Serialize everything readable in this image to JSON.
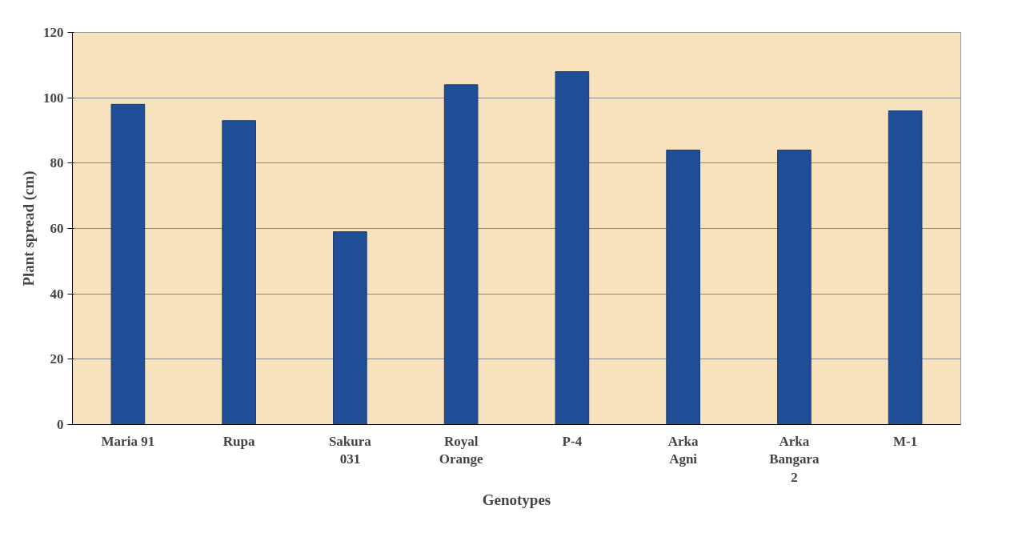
{
  "chart_data": {
    "type": "bar",
    "xlabel": "Genotypes",
    "ylabel": "Plant spread (cm)",
    "categories": [
      "Maria 91",
      "Rupa",
      "Sakura 031",
      "Royal Orange",
      "P-4",
      "Arka Agni",
      "Arka Bangara 2",
      "M-1"
    ],
    "values": [
      98,
      93,
      59,
      104,
      108,
      84,
      84,
      96
    ],
    "color": "#1f4e96",
    "ylim": [
      0,
      120
    ],
    "yticks": [
      0,
      20,
      40,
      60,
      80,
      100,
      120
    ],
    "grid": "y"
  }
}
